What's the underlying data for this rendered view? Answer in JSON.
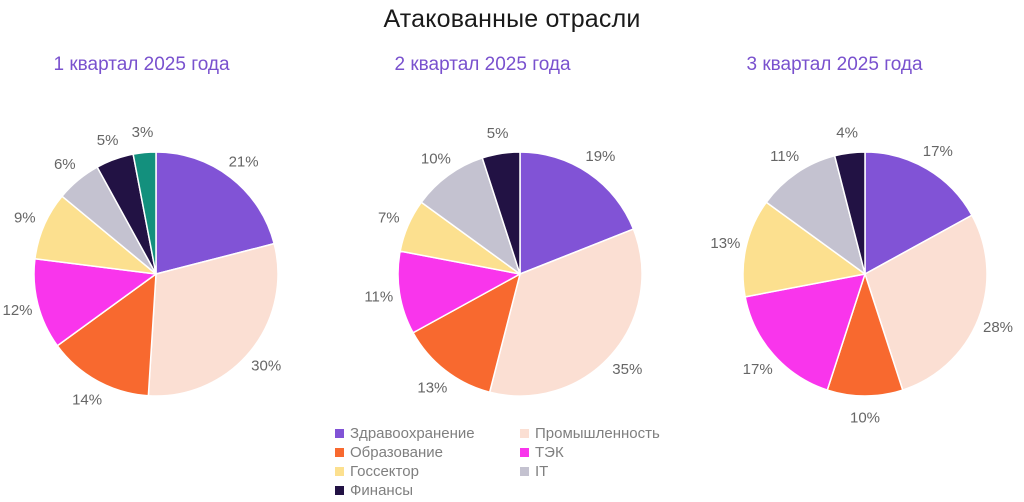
{
  "title": "Атакованные отрасли",
  "colors": {
    "title_text": "#1A1A1A",
    "subtitle_text": "#7951CE",
    "percent_label_text": "#666666",
    "legend_text": "#7F7F7F",
    "slice_border": "#FFFFFF",
    "background": "#FFFFFF"
  },
  "legend": {
    "column_1": [
      {
        "label": "Здравоохранение",
        "color": "#8153D6"
      },
      {
        "label": "Образование",
        "color": "#F8692F"
      },
      {
        "label": "Госсектор",
        "color": "#FCE08F"
      },
      {
        "label": "Финансы",
        "color": "#221244"
      }
    ],
    "column_2": [
      {
        "label": "Промышленность",
        "color": "#FBDFD3"
      },
      {
        "label": "ТЭК",
        "color": "#F935EC"
      },
      {
        "label": "IT",
        "color": "#C4C2D0"
      }
    ]
  },
  "chart_data": [
    {
      "type": "pie",
      "subtitle": "1 квартал 2025 года",
      "value_suffix": "%",
      "start_angle_deg": 0,
      "direction": "clockwise",
      "slices": [
        {
          "category": "Здравоохранение",
          "value": 21,
          "color": "#8153D6"
        },
        {
          "category": "Промышленность",
          "value": 30,
          "color": "#FBDFD3"
        },
        {
          "category": "Образование",
          "value": 14,
          "color": "#F8692F"
        },
        {
          "category": "ТЭК",
          "value": 12,
          "color": "#F935EC"
        },
        {
          "category": "Госсектор",
          "value": 9,
          "color": "#FCE08F"
        },
        {
          "category": "IT",
          "value": 6,
          "color": "#C4C2D0"
        },
        {
          "category": "Финансы",
          "value": 5,
          "color": "#221244"
        },
        {
          "category": "",
          "value": 3,
          "color": "#13907D"
        }
      ]
    },
    {
      "type": "pie",
      "subtitle": "2 квартал 2025 года",
      "value_suffix": "%",
      "start_angle_deg": 0,
      "direction": "clockwise",
      "slices": [
        {
          "category": "Здравоохранение",
          "value": 19,
          "color": "#8153D6"
        },
        {
          "category": "Промышленность",
          "value": 35,
          "color": "#FBDFD3"
        },
        {
          "category": "Образование",
          "value": 13,
          "color": "#F8692F"
        },
        {
          "category": "ТЭК",
          "value": 11,
          "color": "#F935EC"
        },
        {
          "category": "Госсектор",
          "value": 7,
          "color": "#FCE08F"
        },
        {
          "category": "IT",
          "value": 10,
          "color": "#C4C2D0"
        },
        {
          "category": "Финансы",
          "value": 5,
          "color": "#221244"
        }
      ]
    },
    {
      "type": "pie",
      "subtitle": "3 квартал 2025 года",
      "value_suffix": "%",
      "start_angle_deg": 0,
      "direction": "clockwise",
      "slices": [
        {
          "category": "Здравоохранение",
          "value": 17,
          "color": "#8153D6"
        },
        {
          "category": "Промышленность",
          "value": 28,
          "color": "#FBDFD3"
        },
        {
          "category": "Образование",
          "value": 10,
          "color": "#F8692F"
        },
        {
          "category": "ТЭК",
          "value": 17,
          "color": "#F935EC"
        },
        {
          "category": "Госсектор",
          "value": 13,
          "color": "#FCE08F"
        },
        {
          "category": "IT",
          "value": 11,
          "color": "#C4C2D0"
        },
        {
          "category": "Финансы",
          "value": 4,
          "color": "#221244"
        }
      ]
    }
  ]
}
